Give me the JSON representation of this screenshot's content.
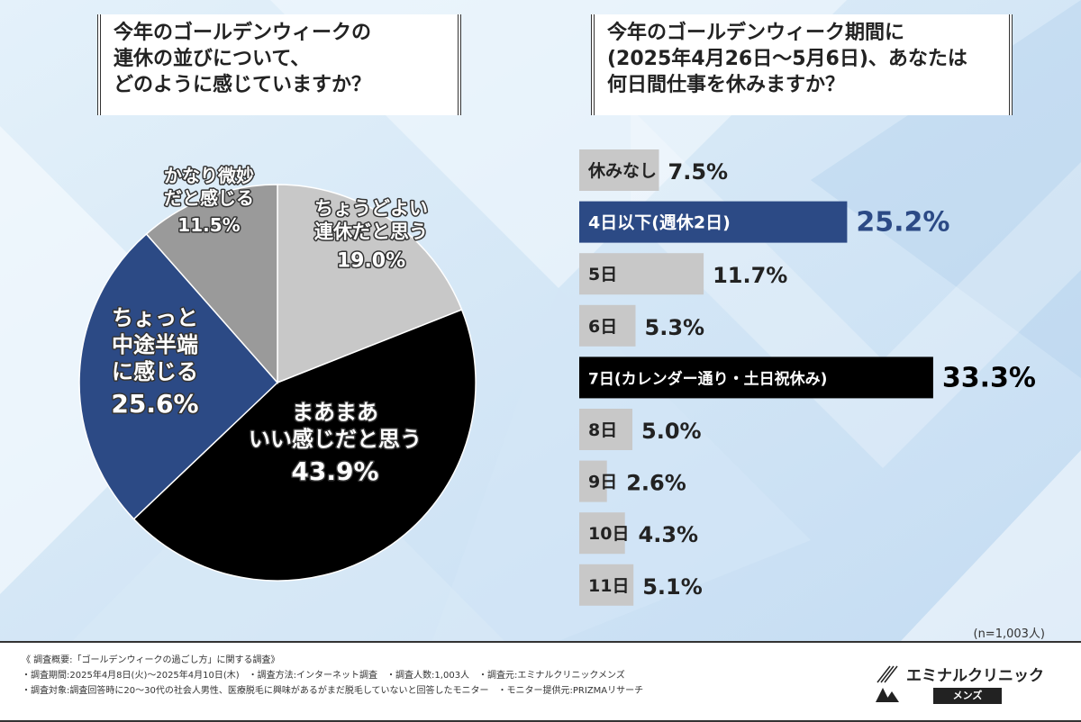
{
  "pie_title": [
    "今年のゴールデンウィークの",
    "連休の並びについて、",
    "どのように感じていますか？"
  ],
  "bar_title": [
    "今年のゴールデンウィーク期間に",
    "(2025年4月26日〜5月6日)、あなたは",
    "何日間仕事を休みますか？"
  ],
  "sample_size": "(n=1,003人)",
  "colors": {
    "black": "#000000",
    "navy": "#2c4a85",
    "gray": "#9a9a9a",
    "light_gray": "#c8c8c8"
  },
  "chart_data": [
    {
      "type": "pie",
      "slices": [
        {
          "label_lines": [
            "ちょうどよい",
            "連休だと思う"
          ],
          "value": 19.0,
          "value_text": "19.0%",
          "color": "#c8c8c8"
        },
        {
          "label_lines": [
            "まあまあ",
            "いい感じだと思う"
          ],
          "value": 43.9,
          "value_text": "43.9%",
          "color": "#000000"
        },
        {
          "label_lines": [
            "ちょっと",
            "中途半端",
            "に感じる"
          ],
          "value": 25.6,
          "value_text": "25.6%",
          "color": "#2c4a85"
        },
        {
          "label_lines": [
            "かなり微妙",
            "だと感じる"
          ],
          "value": 11.5,
          "value_text": "11.5%",
          "color": "#9a9a9a"
        }
      ]
    },
    {
      "type": "bar",
      "orientation": "horizontal",
      "categories": [
        "休みなし",
        "4日以下(週休2日)",
        "5日",
        "6日",
        "7日(カレンダー通り・土日祝休み)",
        "8日",
        "9日",
        "10日",
        "11日"
      ],
      "values": [
        7.5,
        25.2,
        11.7,
        5.3,
        33.3,
        5.0,
        2.6,
        4.3,
        5.1
      ],
      "value_texts": [
        "7.5%",
        "25.2%",
        "11.7%",
        "5.3%",
        "33.3%",
        "5.0%",
        "2.6%",
        "4.3%",
        "5.1%"
      ],
      "bar_colors": [
        "#c8c8c8",
        "#2c4a85",
        "#c8c8c8",
        "#c8c8c8",
        "#000000",
        "#c8c8c8",
        "#c8c8c8",
        "#c8c8c8",
        "#c8c8c8"
      ],
      "label_colors": [
        "#222222",
        "#ffffff",
        "#222222",
        "#222222",
        "#ffffff",
        "#222222",
        "#222222",
        "#222222",
        "#222222"
      ],
      "pct_colors": [
        "#222222",
        "#2c4a85",
        "#222222",
        "#222222",
        "#000000",
        "#222222",
        "#222222",
        "#222222",
        "#222222"
      ]
    }
  ],
  "footer": {
    "line1": "《 調査概要:「ゴールデンウィークの過ごし方」に関する調査》",
    "line2": "・調査期間:2025年4月8日(火)〜2025年4月10日(木)　・調査方法:インターネット調査　・調査人数:1,003人　・調査元:エミナルクリニックメンズ",
    "line3": "・調査対象:調査回答時に20〜30代の社会人男性、医療脱毛に興味があるがまだ脱毛していないと回答したモニター　・モニター提供元:PRIZMAリサーチ",
    "logo_name": "エミナルクリニック",
    "logo_sub": "メンズ"
  }
}
